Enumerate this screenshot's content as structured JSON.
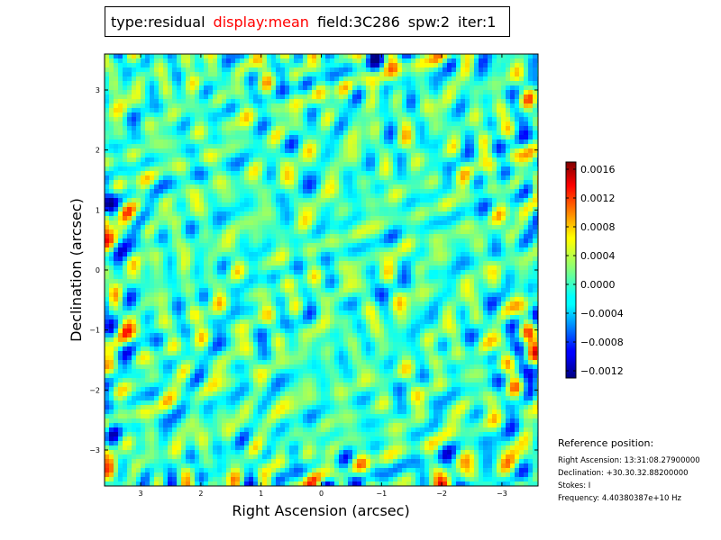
{
  "title": {
    "type": "type:residual",
    "display": "display:mean",
    "field": "field:3C286",
    "spw": "spw:2",
    "iter": "iter:1"
  },
  "colors": {
    "display_highlight": "#ff0000"
  },
  "chart_data": {
    "type": "heatmap",
    "colormap": "jet",
    "xlabel": "Right Ascension (arcsec)",
    "ylabel": "Declination (arcsec)",
    "xlim": [
      3.6,
      -3.6
    ],
    "ylim": [
      -3.6,
      3.6
    ],
    "x_ticks": [
      {
        "value": 3,
        "label": "3"
      },
      {
        "value": 2,
        "label": "2"
      },
      {
        "value": 1,
        "label": "1"
      },
      {
        "value": 0,
        "label": "0"
      },
      {
        "value": -1,
        "label": "−1"
      },
      {
        "value": -2,
        "label": "−2"
      },
      {
        "value": -3,
        "label": "−3"
      }
    ],
    "y_ticks": [
      {
        "value": 3,
        "label": "3"
      },
      {
        "value": 2,
        "label": "2"
      },
      {
        "value": 1,
        "label": "1"
      },
      {
        "value": 0,
        "label": "0"
      },
      {
        "value": -1,
        "label": "−1"
      },
      {
        "value": -2,
        "label": "−2"
      },
      {
        "value": -3,
        "label": "−3"
      }
    ],
    "colorbar": {
      "range": [
        -0.0013,
        0.0017
      ],
      "ticks": [
        {
          "value": 0.0016,
          "label": "0.0016"
        },
        {
          "value": 0.0012,
          "label": "0.0012"
        },
        {
          "value": 0.0008,
          "label": "0.0008"
        },
        {
          "value": 0.0004,
          "label": "0.0004"
        },
        {
          "value": 0.0,
          "label": "0.0000"
        },
        {
          "value": -0.0004,
          "label": "−0.0004"
        },
        {
          "value": -0.0008,
          "label": "−0.0008"
        },
        {
          "value": -0.0012,
          "label": "−0.0012"
        }
      ]
    }
  },
  "reference": {
    "title": "Reference position:",
    "ra": "Right Ascension: 13:31:08.27900000",
    "dec": "Declination: +30.30.32.88200000",
    "stokes": "Stokes: I",
    "freq": "Frequency: 4.40380387e+10 Hz"
  }
}
